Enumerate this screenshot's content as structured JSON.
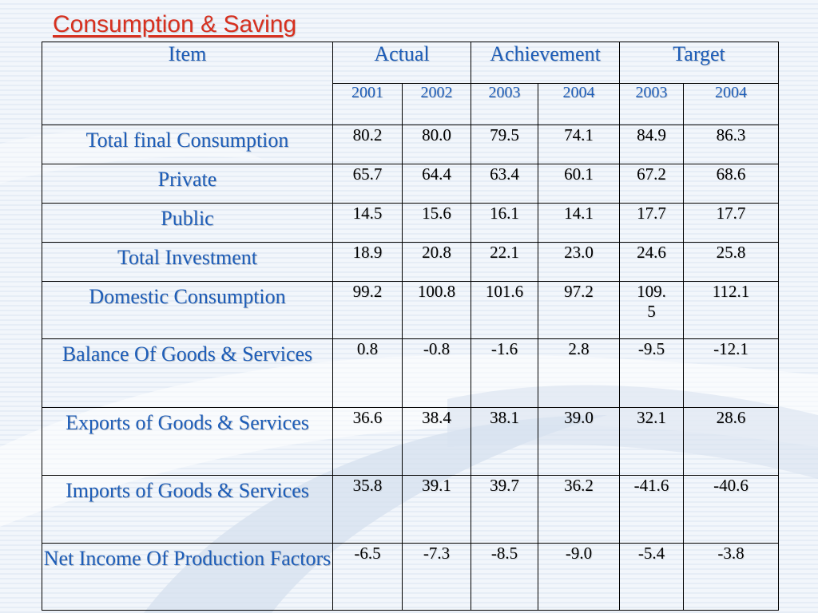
{
  "title": "Consumption & Saving",
  "header": {
    "item": "Item",
    "groups": [
      "Actual",
      "Achievement",
      "Target"
    ],
    "years": [
      "2001",
      "2002",
      "2003",
      "2004",
      "2003",
      "2004"
    ]
  },
  "rows": [
    {
      "label": "Total final Consumption",
      "values": [
        "80.2",
        "80.0",
        "79.5",
        "74.1",
        "84.9",
        "86.3"
      ]
    },
    {
      "label": "Private",
      "values": [
        "65.7",
        "64.4",
        "63.4",
        "60.1",
        "67.2",
        "68.6"
      ]
    },
    {
      "label": "Public",
      "values": [
        "14.5",
        "15.6",
        "16.1",
        "14.1",
        "17.7",
        "17.7"
      ]
    },
    {
      "label": "Total Investment",
      "values": [
        "18.9",
        "20.8",
        "22.1",
        "23.0",
        "24.6",
        "25.8"
      ]
    },
    {
      "label": "Domestic Consumption",
      "values": [
        "99.2",
        "100.8",
        "101.6",
        "97.2",
        "109.5",
        "112.1"
      ]
    },
    {
      "label": "Balance Of Goods & Services",
      "values": [
        "0.8",
        "-0.8",
        "-1.6",
        "2.8",
        "-9.5",
        "-12.1"
      ]
    },
    {
      "label": "Exports of Goods & Services",
      "values": [
        "36.6",
        "38.4",
        "38.1",
        "39.0",
        "32.1",
        "28.6"
      ]
    },
    {
      "label": "Imports of Goods & Services",
      "values": [
        "35.8",
        "39.1",
        "39.7",
        "36.2",
        "-41.6",
        "-40.6"
      ]
    },
    {
      "label": "Net Income Of Production Factors",
      "values": [
        "-6.5",
        "-7.3",
        "-8.5",
        "-9.0",
        "-5.4",
        "-3.8"
      ]
    }
  ]
}
